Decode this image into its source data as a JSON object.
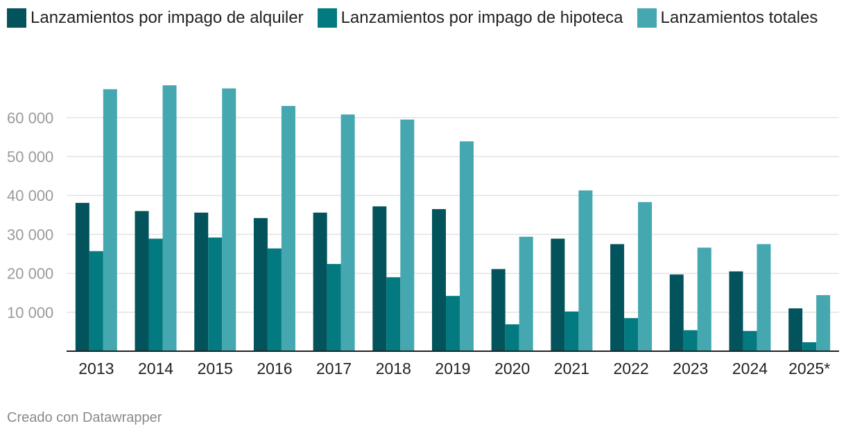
{
  "chart_data": {
    "type": "bar",
    "categories": [
      "2013",
      "2014",
      "2015",
      "2016",
      "2017",
      "2018",
      "2019",
      "2020",
      "2021",
      "2022",
      "2023",
      "2024",
      "2025*"
    ],
    "series": [
      {
        "name": "Lanzamientos por impago de alquiler",
        "color": "#02535b",
        "values": [
          38100,
          36000,
          35600,
          34200,
          35600,
          37200,
          36500,
          21100,
          28900,
          27500,
          19700,
          20500,
          11000
        ]
      },
      {
        "name": "Lanzamientos por impago de hipoteca",
        "color": "#037a80",
        "values": [
          25700,
          28900,
          29200,
          26400,
          22400,
          19000,
          14200,
          6900,
          10200,
          8500,
          5400,
          5200,
          2300
        ]
      },
      {
        "name": "Lanzamientos totales",
        "color": "#45a7b0",
        "values": [
          67300,
          68300,
          67500,
          63000,
          60800,
          59500,
          53900,
          29400,
          41300,
          38300,
          26600,
          27500,
          14400
        ]
      }
    ],
    "y_ticks": [
      10000,
      20000,
      30000,
      40000,
      50000,
      60000
    ],
    "y_tick_labels": [
      "10 000",
      "20 000",
      "30 000",
      "40 000",
      "50 000",
      "60 000"
    ],
    "ylim": [
      0,
      70000
    ],
    "grid": true,
    "legend_position": "top-left",
    "title": "",
    "xlabel": "",
    "ylabel": ""
  },
  "footer": {
    "credit": "Creado con Datawrapper"
  }
}
